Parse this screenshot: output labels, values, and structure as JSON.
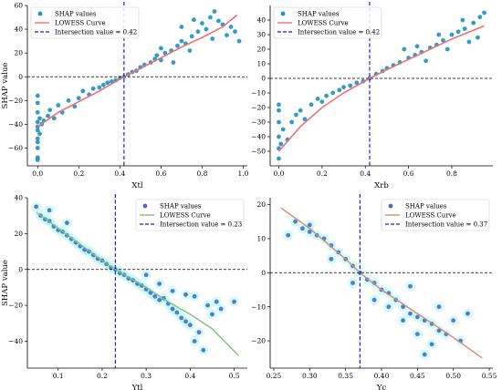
{
  "chart_data": [
    {
      "type": "scatter",
      "panel": "top-left",
      "xlabel": "Xtl",
      "ylabel": "SHAP value",
      "xlim": [
        -0.05,
        1.02
      ],
      "ylim": [
        -75,
        60
      ],
      "xticks": [
        0.0,
        0.2,
        0.4,
        0.6,
        0.8,
        1.0
      ],
      "xtick_labels": [
        "0.0",
        "0.2",
        "0.4",
        "0.6",
        "0.8",
        "1.0"
      ],
      "yticks": [
        -60,
        -40,
        -20,
        0,
        20,
        40,
        60
      ],
      "ytick_labels": [
        "−60",
        "−40",
        "−20",
        "0",
        "20",
        "40",
        "60"
      ],
      "legend_position": "top-left",
      "intersection": 0.42,
      "lowess": [
        [
          0.0,
          -42
        ],
        [
          0.1,
          -30
        ],
        [
          0.2,
          -21
        ],
        [
          0.3,
          -12
        ],
        [
          0.42,
          0
        ],
        [
          0.5,
          7
        ],
        [
          0.6,
          16
        ],
        [
          0.7,
          25
        ],
        [
          0.8,
          33
        ],
        [
          0.9,
          42
        ],
        [
          0.97,
          52
        ]
      ],
      "points": [
        [
          0.0,
          -68
        ],
        [
          0.0,
          -60
        ],
        [
          0.0,
          -52
        ],
        [
          0.0,
          -45
        ],
        [
          0.0,
          -38
        ],
        [
          0.0,
          -30
        ],
        [
          0.0,
          -22
        ],
        [
          0.0,
          -16
        ],
        [
          0.0,
          -70
        ],
        [
          0.0,
          -55
        ],
        [
          0.0,
          -42
        ],
        [
          0.01,
          -48
        ],
        [
          0.01,
          -35
        ],
        [
          0.02,
          -40
        ],
        [
          0.03,
          -37
        ],
        [
          0.05,
          -33
        ],
        [
          0.06,
          -28
        ],
        [
          0.08,
          -35
        ],
        [
          0.1,
          -24
        ],
        [
          0.12,
          -30
        ],
        [
          0.15,
          -20
        ],
        [
          0.18,
          -25
        ],
        [
          0.2,
          -18
        ],
        [
          0.22,
          -12
        ],
        [
          0.25,
          -15
        ],
        [
          0.27,
          -10
        ],
        [
          0.3,
          -9
        ],
        [
          0.32,
          -7
        ],
        [
          0.34,
          -5
        ],
        [
          0.36,
          -4
        ],
        [
          0.38,
          -3
        ],
        [
          0.4,
          -1
        ],
        [
          0.42,
          0
        ],
        [
          0.44,
          2
        ],
        [
          0.46,
          4
        ],
        [
          0.48,
          5
        ],
        [
          0.5,
          8
        ],
        [
          0.52,
          10
        ],
        [
          0.55,
          12
        ],
        [
          0.57,
          15
        ],
        [
          0.6,
          14
        ],
        [
          0.62,
          20
        ],
        [
          0.65,
          22
        ],
        [
          0.68,
          26
        ],
        [
          0.7,
          30
        ],
        [
          0.72,
          28
        ],
        [
          0.75,
          34
        ],
        [
          0.78,
          38
        ],
        [
          0.8,
          45
        ],
        [
          0.82,
          40
        ],
        [
          0.84,
          50
        ],
        [
          0.86,
          55
        ],
        [
          0.88,
          47
        ],
        [
          0.9,
          44
        ],
        [
          0.92,
          35
        ],
        [
          0.94,
          42
        ],
        [
          0.96,
          38
        ],
        [
          0.98,
          30
        ],
        [
          0.7,
          42
        ],
        [
          0.76,
          48
        ],
        [
          0.85,
          32
        ],
        [
          0.6,
          24
        ],
        [
          0.58,
          18
        ],
        [
          0.66,
          12
        ],
        [
          0.74,
          22
        ]
      ]
    },
    {
      "type": "scatter",
      "panel": "top-right",
      "xlabel": "Xrb",
      "ylabel": "",
      "xlim": [
        -0.04,
        0.99
      ],
      "ylim": [
        -60,
        50
      ],
      "xticks": [
        0.0,
        0.2,
        0.4,
        0.6,
        0.8
      ],
      "xtick_labels": [
        "0.0",
        "0.2",
        "0.4",
        "0.6",
        "0.8"
      ],
      "yticks": [
        -50,
        -40,
        -30,
        -20,
        -10,
        0,
        10,
        20,
        30,
        40
      ],
      "ytick_labels": [
        "−50",
        "−40",
        "−30",
        "−20",
        "−10",
        "0",
        "10",
        "20",
        "30",
        "40"
      ],
      "legend_position": "top-left",
      "intersection": 0.42,
      "lowess": [
        [
          0.0,
          -50
        ],
        [
          0.1,
          -33
        ],
        [
          0.2,
          -20
        ],
        [
          0.3,
          -10
        ],
        [
          0.42,
          0
        ],
        [
          0.5,
          6
        ],
        [
          0.6,
          13
        ],
        [
          0.7,
          20
        ],
        [
          0.8,
          27
        ],
        [
          0.9,
          33
        ],
        [
          0.95,
          36
        ]
      ],
      "points": [
        [
          0.0,
          -55
        ],
        [
          0.0,
          -48
        ],
        [
          0.0,
          -40
        ],
        [
          0.0,
          -30
        ],
        [
          0.0,
          -22
        ],
        [
          0.0,
          -18
        ],
        [
          0.01,
          -45
        ],
        [
          0.02,
          -35
        ],
        [
          0.04,
          -42
        ],
        [
          0.06,
          -30
        ],
        [
          0.08,
          -25
        ],
        [
          0.1,
          -22
        ],
        [
          0.12,
          -28
        ],
        [
          0.15,
          -18
        ],
        [
          0.18,
          -14
        ],
        [
          0.2,
          -16
        ],
        [
          0.22,
          -12
        ],
        [
          0.25,
          -10
        ],
        [
          0.28,
          -8
        ],
        [
          0.3,
          -6
        ],
        [
          0.33,
          -5
        ],
        [
          0.36,
          -3
        ],
        [
          0.39,
          -2
        ],
        [
          0.42,
          0
        ],
        [
          0.45,
          3
        ],
        [
          0.48,
          5
        ],
        [
          0.5,
          7
        ],
        [
          0.53,
          9
        ],
        [
          0.56,
          11
        ],
        [
          0.6,
          14
        ],
        [
          0.63,
          16
        ],
        [
          0.66,
          18
        ],
        [
          0.7,
          21
        ],
        [
          0.73,
          23
        ],
        [
          0.76,
          26
        ],
        [
          0.8,
          30
        ],
        [
          0.83,
          32
        ],
        [
          0.86,
          34
        ],
        [
          0.9,
          38
        ],
        [
          0.93,
          42
        ],
        [
          0.95,
          45
        ],
        [
          0.88,
          25
        ],
        [
          0.78,
          20
        ],
        [
          0.68,
          12
        ],
        [
          0.58,
          20
        ],
        [
          0.85,
          40
        ],
        [
          0.92,
          28
        ],
        [
          0.74,
          30
        ],
        [
          0.64,
          22
        ]
      ]
    },
    {
      "type": "scatter",
      "panel": "bottom-left",
      "xlabel": "Ytl",
      "ylabel": "SHAP value",
      "xlim": [
        0.03,
        0.53
      ],
      "ylim": [
        -55,
        40
      ],
      "xticks": [
        0.1,
        0.2,
        0.3,
        0.4,
        0.5
      ],
      "xtick_labels": [
        "0.1",
        "0.2",
        "0.3",
        "0.4",
        "0.5"
      ],
      "yticks": [
        -40,
        -20,
        0,
        20,
        40
      ],
      "ytick_labels": [
        "−40",
        "−20",
        "0",
        "20",
        "40"
      ],
      "legend_position": "top-right",
      "intersection": 0.23,
      "lowess": [
        [
          0.05,
          32
        ],
        [
          0.1,
          23
        ],
        [
          0.15,
          14
        ],
        [
          0.2,
          5
        ],
        [
          0.23,
          0
        ],
        [
          0.3,
          -10
        ],
        [
          0.35,
          -18
        ],
        [
          0.4,
          -25
        ],
        [
          0.45,
          -33
        ],
        [
          0.51,
          -48
        ]
      ],
      "points": [
        [
          0.05,
          35
        ],
        [
          0.06,
          30
        ],
        [
          0.07,
          28
        ],
        [
          0.08,
          27
        ],
        [
          0.09,
          24
        ],
        [
          0.1,
          22
        ],
        [
          0.11,
          21
        ],
        [
          0.12,
          19
        ],
        [
          0.13,
          17
        ],
        [
          0.14,
          15
        ],
        [
          0.15,
          13
        ],
        [
          0.16,
          11
        ],
        [
          0.17,
          10
        ],
        [
          0.18,
          8
        ],
        [
          0.19,
          6
        ],
        [
          0.2,
          5
        ],
        [
          0.21,
          3
        ],
        [
          0.22,
          1
        ],
        [
          0.23,
          0
        ],
        [
          0.24,
          -2
        ],
        [
          0.25,
          -3
        ],
        [
          0.26,
          -5
        ],
        [
          0.27,
          -6
        ],
        [
          0.28,
          -8
        ],
        [
          0.29,
          -9
        ],
        [
          0.3,
          -11
        ],
        [
          0.31,
          -13
        ],
        [
          0.32,
          -15
        ],
        [
          0.33,
          -17
        ],
        [
          0.34,
          -16
        ],
        [
          0.35,
          -19
        ],
        [
          0.36,
          -22
        ],
        [
          0.37,
          -24
        ],
        [
          0.38,
          -27
        ],
        [
          0.39,
          -29
        ],
        [
          0.4,
          -31
        ],
        [
          0.41,
          -40
        ],
        [
          0.42,
          -35
        ],
        [
          0.43,
          -45
        ],
        [
          0.44,
          -20
        ],
        [
          0.45,
          -25
        ],
        [
          0.46,
          -18
        ],
        [
          0.47,
          -22
        ],
        [
          0.5,
          -18
        ],
        [
          0.41,
          -15
        ],
        [
          0.39,
          -14
        ],
        [
          0.36,
          -12
        ],
        [
          0.33,
          -8
        ],
        [
          0.3,
          -3
        ],
        [
          0.12,
          26
        ],
        [
          0.08,
          33
        ]
      ]
    },
    {
      "type": "scatter",
      "panel": "bottom-right",
      "xlabel": "Yc",
      "ylabel": "",
      "xlim": [
        0.245,
        0.555
      ],
      "ylim": [
        -28,
        22
      ],
      "xticks": [
        0.25,
        0.3,
        0.35,
        0.4,
        0.45,
        0.5,
        0.55
      ],
      "xtick_labels": [
        "0.25",
        "0.30",
        "0.35",
        "0.40",
        "0.45",
        "0.50",
        "0.55"
      ],
      "yticks": [
        -20,
        -10,
        0,
        10,
        20
      ],
      "ytick_labels": [
        "−20",
        "−10",
        "0",
        "10",
        "20"
      ],
      "legend_position": "top-right",
      "intersection": 0.37,
      "lowess": [
        [
          0.26,
          19
        ],
        [
          0.3,
          13
        ],
        [
          0.35,
          4
        ],
        [
          0.37,
          0
        ],
        [
          0.4,
          -5
        ],
        [
          0.45,
          -12
        ],
        [
          0.5,
          -19
        ],
        [
          0.54,
          -25
        ]
      ],
      "points": [
        [
          0.27,
          11
        ],
        [
          0.28,
          15
        ],
        [
          0.29,
          13
        ],
        [
          0.3,
          12
        ],
        [
          0.31,
          11
        ],
        [
          0.32,
          10
        ],
        [
          0.33,
          8
        ],
        [
          0.34,
          6
        ],
        [
          0.35,
          4
        ],
        [
          0.36,
          2
        ],
        [
          0.37,
          0
        ],
        [
          0.38,
          -2
        ],
        [
          0.39,
          -3
        ],
        [
          0.4,
          -5
        ],
        [
          0.41,
          -6
        ],
        [
          0.42,
          -8
        ],
        [
          0.43,
          -10
        ],
        [
          0.44,
          -12
        ],
        [
          0.45,
          -13
        ],
        [
          0.46,
          -14
        ],
        [
          0.47,
          -15
        ],
        [
          0.48,
          -17
        ],
        [
          0.49,
          -18
        ],
        [
          0.5,
          -14
        ],
        [
          0.52,
          -12
        ],
        [
          0.51,
          -20
        ],
        [
          0.47,
          -21
        ],
        [
          0.45,
          -18
        ],
        [
          0.43,
          -14
        ],
        [
          0.41,
          -10
        ],
        [
          0.39,
          -8
        ],
        [
          0.36,
          -3
        ],
        [
          0.33,
          4
        ],
        [
          0.3,
          14
        ],
        [
          0.46,
          -24
        ],
        [
          0.48,
          -10
        ],
        [
          0.44,
          -4
        ]
      ]
    }
  ],
  "legend": {
    "shap": "SHAP values",
    "lowess": "LOWESS Curve",
    "intersection_prefix": "Intersection value = "
  },
  "colors": {
    "top_points": "#1f8fc4",
    "top_lowess": "#f07070",
    "bottom_points": "#4f68c8",
    "bottom_glow": "#7ff6ee",
    "bottom_lowess_left": "#7fbf80",
    "bottom_lowess_right": "#d98c6f",
    "intersection_line": "#1a23c8",
    "zero_line": "#000000"
  }
}
